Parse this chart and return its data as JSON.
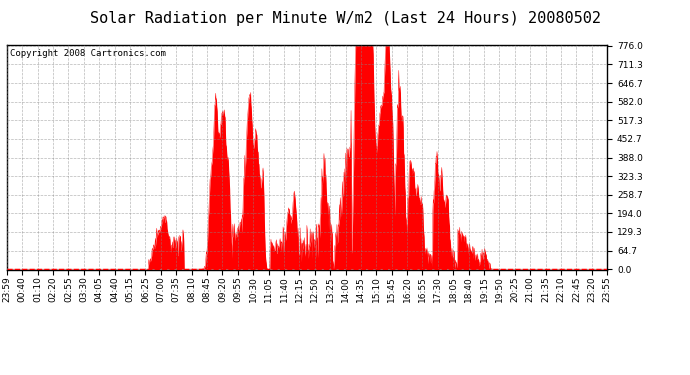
{
  "title": "Solar Radiation per Minute W/m2 (Last 24 Hours) 20080502",
  "copyright": "Copyright 2008 Cartronics.com",
  "yticks": [
    0.0,
    64.7,
    129.3,
    194.0,
    258.7,
    323.3,
    388.0,
    452.7,
    517.3,
    582.0,
    646.7,
    711.3,
    776.0
  ],
  "ymax": 776.0,
  "ymin": 0.0,
  "bg_color": "#ffffff",
  "plot_bg_color": "#ffffff",
  "fill_color": "#ff0000",
  "grid_color": "#888888",
  "dashed_line_color": "#ff0000",
  "title_fontsize": 11,
  "tick_fontsize": 6.5,
  "copyright_fontsize": 6.5,
  "x_tick_labels": [
    "23:59",
    "00:40",
    "01:10",
    "02:20",
    "02:55",
    "03:30",
    "04:05",
    "04:40",
    "05:15",
    "06:25",
    "07:00",
    "07:35",
    "08:10",
    "08:45",
    "09:20",
    "09:55",
    "10:30",
    "11:05",
    "11:40",
    "12:15",
    "12:50",
    "13:25",
    "14:00",
    "14:35",
    "15:10",
    "15:45",
    "16:20",
    "16:55",
    "17:30",
    "18:05",
    "18:40",
    "19:15",
    "19:50",
    "20:25",
    "21:00",
    "21:35",
    "22:10",
    "22:45",
    "23:20",
    "23:55"
  ]
}
